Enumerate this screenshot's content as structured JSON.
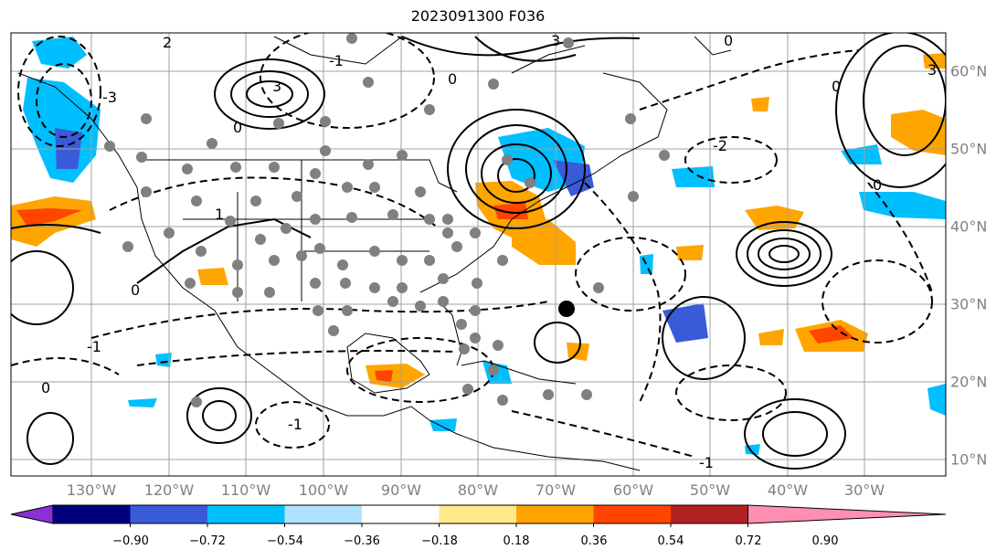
{
  "title": "2023091300 F036",
  "lon_labels": [
    "130°W",
    "120°W",
    "110°W",
    "100°W",
    "90°W",
    "80°W",
    "70°W",
    "60°W",
    "50°W",
    "40°W",
    "30°W"
  ],
  "lat_labels": [
    "60°N",
    "50°N",
    "40°N",
    "30°N",
    "20°N",
    "10°N"
  ],
  "colorbar": {
    "ticks": [
      "−0.90",
      "−0.72",
      "−0.54",
      "−0.36",
      "−0.18",
      "0.18",
      "0.36",
      "0.54",
      "0.72",
      "0.90"
    ],
    "colors": [
      "#8b2fd6",
      "#00007f",
      "#3a5bd8",
      "#00bfff",
      "#b0e2ff",
      "#ffffff",
      "#ffe98a",
      "#ffa500",
      "#ff4500",
      "#b22222",
      "#ff8fb0"
    ]
  },
  "contour_labels": [
    "2",
    "-1",
    "-3",
    "3",
    "0",
    "-2",
    "1"
  ],
  "colors": {
    "contour": "#000000",
    "grid": "#a0a0a0",
    "station": "#808080",
    "marker": "#000000"
  }
}
